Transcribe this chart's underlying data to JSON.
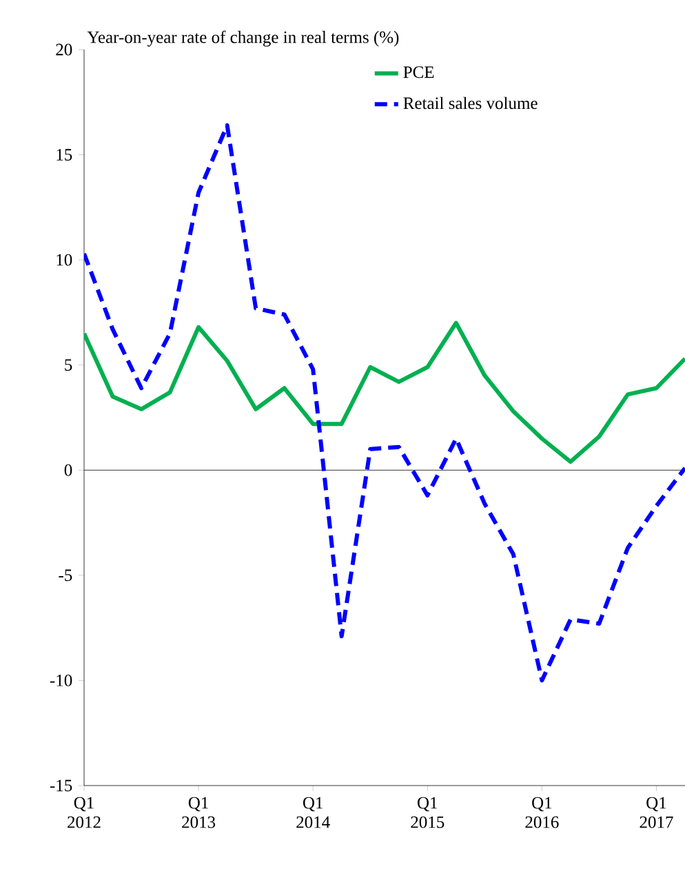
{
  "chart_data": {
    "type": "line",
    "ylabel": "Year-on-year rate of change in real terms (%)",
    "categories": [
      "Q1 2012",
      null,
      null,
      null,
      "Q1 2013",
      null,
      null,
      null,
      "Q1 2014",
      null,
      null,
      null,
      "Q1 2015",
      null,
      null,
      null,
      "Q1 2016",
      null,
      null,
      null,
      "Q1 2017",
      null
    ],
    "series": [
      {
        "name": "PCE",
        "color": "#00b050",
        "line_style": "solid",
        "values": [
          6.5,
          3.5,
          2.9,
          3.7,
          6.8,
          5.2,
          2.9,
          3.9,
          2.2,
          2.2,
          4.9,
          4.2,
          4.9,
          7.0,
          4.5,
          2.8,
          1.5,
          0.4,
          1.6,
          3.6,
          3.9,
          5.3
        ]
      },
      {
        "name": "Retail sales volume",
        "color": "#0000ff",
        "line_style": "dashed",
        "values": [
          10.3,
          6.7,
          3.9,
          6.5,
          13.2,
          16.4,
          7.7,
          7.4,
          4.8,
          -7.9,
          1.0,
          1.1,
          -1.2,
          1.5,
          -1.6,
          -4.0,
          -10.0,
          -7.1,
          -7.3,
          -3.7,
          -1.7,
          0.1
        ]
      }
    ],
    "ylim": [
      -15,
      20
    ],
    "yticks": [
      -15,
      -10,
      -5,
      0,
      5,
      10,
      15,
      20
    ],
    "ref_lines": [
      {
        "axis": "y",
        "value": 0,
        "color": "#000000"
      }
    ],
    "legend": "top",
    "grid": false,
    "marker": "none"
  }
}
